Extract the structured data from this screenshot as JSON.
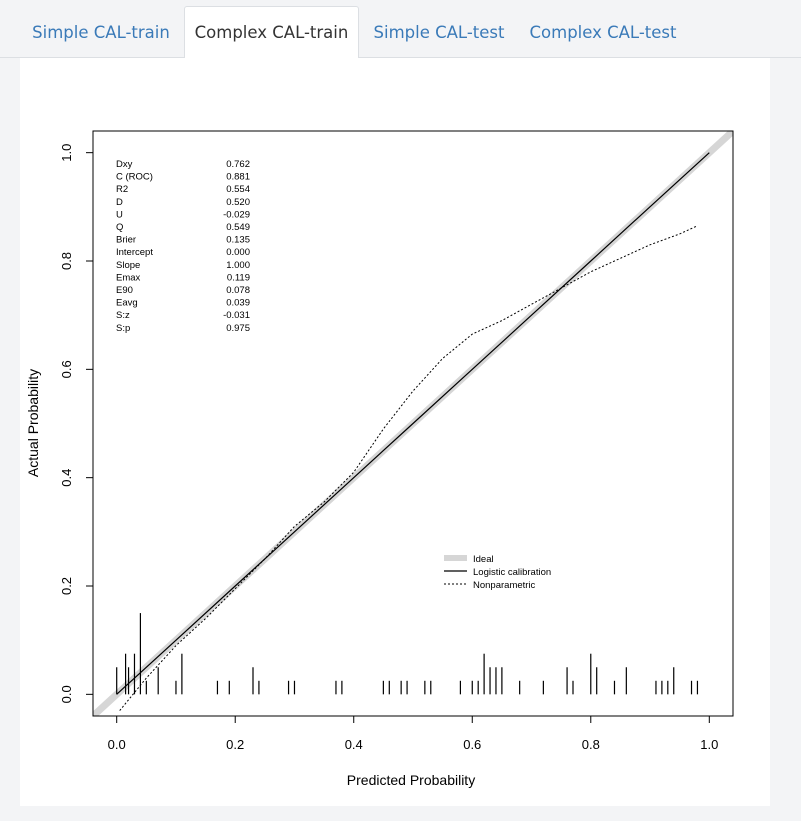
{
  "tabs": [
    {
      "label": "Simple CAL-train",
      "active": false
    },
    {
      "label": "Complex CAL-train",
      "active": true
    },
    {
      "label": "Simple CAL-test",
      "active": false
    },
    {
      "label": "Complex CAL-test",
      "active": false
    }
  ],
  "chart_data": {
    "type": "line",
    "xlabel": "Predicted Probability",
    "ylabel": "Actual Probability",
    "xlim": [
      -0.04,
      1.04
    ],
    "ylim": [
      -0.04,
      1.04
    ],
    "x_ticks": [
      "0.0",
      "0.2",
      "0.4",
      "0.6",
      "0.8",
      "1.0"
    ],
    "y_ticks": [
      "0.0",
      "0.2",
      "0.4",
      "0.6",
      "0.8",
      "1.0"
    ],
    "stats": [
      {
        "label": "Dxy",
        "value": "0.762"
      },
      {
        "label": "C (ROC)",
        "value": "0.881"
      },
      {
        "label": "R2",
        "value": "0.554"
      },
      {
        "label": "D",
        "value": "0.520"
      },
      {
        "label": "U",
        "value": "-0.029"
      },
      {
        "label": "Q",
        "value": "0.549"
      },
      {
        "label": "Brier",
        "value": "0.135"
      },
      {
        "label": "Intercept",
        "value": "0.000"
      },
      {
        "label": "Slope",
        "value": "1.000"
      },
      {
        "label": "Emax",
        "value": "0.119"
      },
      {
        "label": "E90",
        "value": "0.078"
      },
      {
        "label": "Eavg",
        "value": "0.039"
      },
      {
        "label": "S:z",
        "value": "-0.031"
      },
      {
        "label": "S:p",
        "value": "0.975"
      }
    ],
    "legend": [
      "Ideal",
      "Logistic calibration",
      "Nonparametric"
    ],
    "legend_position": "bottom-right",
    "grid": false,
    "series": [
      {
        "name": "Ideal",
        "x": [
          -0.04,
          1.04
        ],
        "y": [
          -0.04,
          1.04
        ],
        "color": "#d6d6d6"
      },
      {
        "name": "Logistic calibration",
        "x": [
          0.0,
          0.1,
          0.2,
          0.3,
          0.4,
          0.5,
          0.6,
          0.7,
          0.8,
          0.9,
          1.0
        ],
        "y": [
          0.0,
          0.1,
          0.2,
          0.3,
          0.4,
          0.5,
          0.6,
          0.7,
          0.8,
          0.9,
          1.0
        ],
        "color": "#000000"
      },
      {
        "name": "Nonparametric",
        "x": [
          0.005,
          0.05,
          0.1,
          0.15,
          0.2,
          0.25,
          0.3,
          0.35,
          0.4,
          0.45,
          0.5,
          0.55,
          0.6,
          0.65,
          0.7,
          0.75,
          0.8,
          0.85,
          0.9,
          0.95,
          0.98
        ],
        "y": [
          -0.03,
          0.03,
          0.09,
          0.14,
          0.195,
          0.25,
          0.31,
          0.355,
          0.41,
          0.49,
          0.56,
          0.62,
          0.665,
          0.69,
          0.72,
          0.75,
          0.78,
          0.805,
          0.83,
          0.85,
          0.865
        ],
        "color": "#000000"
      }
    ],
    "rug": {
      "x": [
        0.0,
        0.015,
        0.02,
        0.03,
        0.04,
        0.05,
        0.07,
        0.1,
        0.11,
        0.17,
        0.19,
        0.23,
        0.24,
        0.29,
        0.3,
        0.37,
        0.38,
        0.45,
        0.46,
        0.48,
        0.49,
        0.52,
        0.53,
        0.58,
        0.6,
        0.61,
        0.62,
        0.63,
        0.64,
        0.65,
        0.68,
        0.72,
        0.76,
        0.77,
        0.8,
        0.81,
        0.84,
        0.86,
        0.91,
        0.92,
        0.93,
        0.94,
        0.97,
        0.98
      ],
      "h": [
        0.05,
        0.075,
        0.05,
        0.075,
        0.15,
        0.025,
        0.05,
        0.025,
        0.075,
        0.025,
        0.025,
        0.05,
        0.025,
        0.025,
        0.025,
        0.025,
        0.025,
        0.025,
        0.025,
        0.025,
        0.025,
        0.025,
        0.025,
        0.025,
        0.025,
        0.025,
        0.075,
        0.05,
        0.05,
        0.05,
        0.025,
        0.025,
        0.05,
        0.025,
        0.075,
        0.05,
        0.025,
        0.05,
        0.025,
        0.025,
        0.025,
        0.05,
        0.025,
        0.025
      ]
    }
  }
}
